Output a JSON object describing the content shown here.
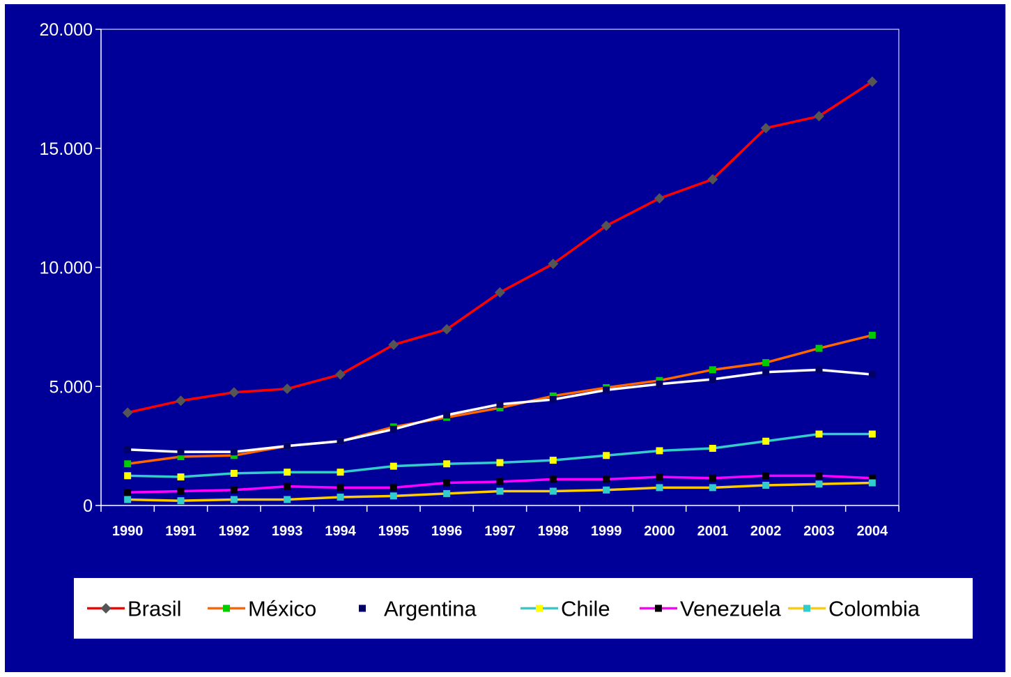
{
  "chart_data": {
    "type": "line",
    "title": "",
    "xlabel": "",
    "ylabel": "",
    "x": [
      "1990",
      "1991",
      "1992",
      "1993",
      "1994",
      "1995",
      "1996",
      "1997",
      "1998",
      "1999",
      "2000",
      "2001",
      "2002",
      "2003",
      "2004"
    ],
    "ylim": [
      0,
      20000
    ],
    "yticks": [
      0,
      5000,
      10000,
      15000,
      20000
    ],
    "ytick_labels": [
      "0",
      "5.000",
      "10.000",
      "15.000",
      "20.000"
    ],
    "grid": false,
    "legend_position": "bottom",
    "background_color": "#000099",
    "series": [
      {
        "name": "Brasil",
        "line_color": "#ff0000",
        "marker_color": "#555555",
        "marker": "diamond",
        "values": [
          3900,
          4400,
          4750,
          4900,
          5500,
          6750,
          7400,
          8950,
          10150,
          11750,
          12900,
          13700,
          15850,
          16350,
          17800
        ]
      },
      {
        "name": "México",
        "line_color": "#ff6600",
        "marker_color": "#00cc00",
        "marker": "square",
        "values": [
          1750,
          2050,
          2100,
          2500,
          2700,
          3300,
          3700,
          4100,
          4600,
          4950,
          5250,
          5700,
          6000,
          6600,
          7150
        ]
      },
      {
        "name": "Argentina",
        "line_color": "#ffffff",
        "marker_color": "#000066",
        "marker": "square",
        "legend_line": false,
        "values": [
          2350,
          2250,
          2250,
          2500,
          2700,
          3200,
          3800,
          4250,
          4450,
          4850,
          5100,
          5300,
          5600,
          5700,
          5500
        ]
      },
      {
        "name": "Chile",
        "line_color": "#33cccc",
        "marker_color": "#ffff00",
        "marker": "square",
        "values": [
          1250,
          1200,
          1350,
          1400,
          1400,
          1650,
          1750,
          1800,
          1900,
          2100,
          2300,
          2400,
          2700,
          3000,
          3000
        ]
      },
      {
        "name": "Venezuela",
        "line_color": "#ff00ff",
        "marker_color": "#000000",
        "marker": "square",
        "values": [
          550,
          600,
          650,
          800,
          750,
          750,
          950,
          1000,
          1100,
          1100,
          1200,
          1150,
          1250,
          1250,
          1150
        ]
      },
      {
        "name": "Colombia",
        "line_color": "#ffcc00",
        "marker_color": "#33cccc",
        "marker": "square",
        "values": [
          250,
          200,
          250,
          250,
          350,
          400,
          500,
          600,
          600,
          650,
          750,
          750,
          850,
          900,
          950
        ]
      }
    ]
  }
}
